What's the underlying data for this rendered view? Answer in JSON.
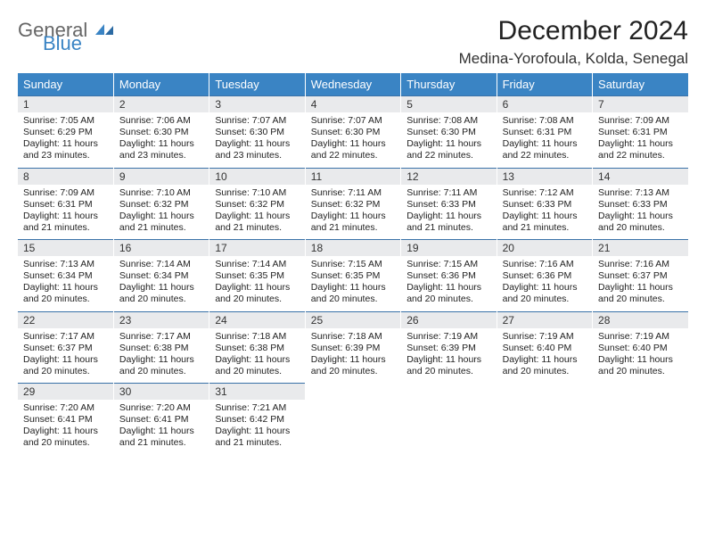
{
  "brand": {
    "part1": "General",
    "part2": "Blue",
    "gray": "#8a8a8a",
    "blue": "#3a84c4"
  },
  "title": "December 2024",
  "location": "Medina-Yorofoula, Kolda, Senegal",
  "header_bg": "#3a84c4",
  "header_fg": "#ffffff",
  "daynum_bg": "#e9eaec",
  "rule_color": "#3a72a8",
  "title_fontsize": 30,
  "location_fontsize": 17,
  "header_fontsize": 13,
  "daynum_fontsize": 12,
  "body_fontsize": 10.5,
  "day_names": [
    "Sunday",
    "Monday",
    "Tuesday",
    "Wednesday",
    "Thursday",
    "Friday",
    "Saturday"
  ],
  "weeks": [
    [
      {
        "n": "1",
        "sr": "7:05 AM",
        "ss": "6:29 PM",
        "dl": "11 hours and 23 minutes."
      },
      {
        "n": "2",
        "sr": "7:06 AM",
        "ss": "6:30 PM",
        "dl": "11 hours and 23 minutes."
      },
      {
        "n": "3",
        "sr": "7:07 AM",
        "ss": "6:30 PM",
        "dl": "11 hours and 23 minutes."
      },
      {
        "n": "4",
        "sr": "7:07 AM",
        "ss": "6:30 PM",
        "dl": "11 hours and 22 minutes."
      },
      {
        "n": "5",
        "sr": "7:08 AM",
        "ss": "6:30 PM",
        "dl": "11 hours and 22 minutes."
      },
      {
        "n": "6",
        "sr": "7:08 AM",
        "ss": "6:31 PM",
        "dl": "11 hours and 22 minutes."
      },
      {
        "n": "7",
        "sr": "7:09 AM",
        "ss": "6:31 PM",
        "dl": "11 hours and 22 minutes."
      }
    ],
    [
      {
        "n": "8",
        "sr": "7:09 AM",
        "ss": "6:31 PM",
        "dl": "11 hours and 21 minutes."
      },
      {
        "n": "9",
        "sr": "7:10 AM",
        "ss": "6:32 PM",
        "dl": "11 hours and 21 minutes."
      },
      {
        "n": "10",
        "sr": "7:10 AM",
        "ss": "6:32 PM",
        "dl": "11 hours and 21 minutes."
      },
      {
        "n": "11",
        "sr": "7:11 AM",
        "ss": "6:32 PM",
        "dl": "11 hours and 21 minutes."
      },
      {
        "n": "12",
        "sr": "7:11 AM",
        "ss": "6:33 PM",
        "dl": "11 hours and 21 minutes."
      },
      {
        "n": "13",
        "sr": "7:12 AM",
        "ss": "6:33 PM",
        "dl": "11 hours and 21 minutes."
      },
      {
        "n": "14",
        "sr": "7:13 AM",
        "ss": "6:33 PM",
        "dl": "11 hours and 20 minutes."
      }
    ],
    [
      {
        "n": "15",
        "sr": "7:13 AM",
        "ss": "6:34 PM",
        "dl": "11 hours and 20 minutes."
      },
      {
        "n": "16",
        "sr": "7:14 AM",
        "ss": "6:34 PM",
        "dl": "11 hours and 20 minutes."
      },
      {
        "n": "17",
        "sr": "7:14 AM",
        "ss": "6:35 PM",
        "dl": "11 hours and 20 minutes."
      },
      {
        "n": "18",
        "sr": "7:15 AM",
        "ss": "6:35 PM",
        "dl": "11 hours and 20 minutes."
      },
      {
        "n": "19",
        "sr": "7:15 AM",
        "ss": "6:36 PM",
        "dl": "11 hours and 20 minutes."
      },
      {
        "n": "20",
        "sr": "7:16 AM",
        "ss": "6:36 PM",
        "dl": "11 hours and 20 minutes."
      },
      {
        "n": "21",
        "sr": "7:16 AM",
        "ss": "6:37 PM",
        "dl": "11 hours and 20 minutes."
      }
    ],
    [
      {
        "n": "22",
        "sr": "7:17 AM",
        "ss": "6:37 PM",
        "dl": "11 hours and 20 minutes."
      },
      {
        "n": "23",
        "sr": "7:17 AM",
        "ss": "6:38 PM",
        "dl": "11 hours and 20 minutes."
      },
      {
        "n": "24",
        "sr": "7:18 AM",
        "ss": "6:38 PM",
        "dl": "11 hours and 20 minutes."
      },
      {
        "n": "25",
        "sr": "7:18 AM",
        "ss": "6:39 PM",
        "dl": "11 hours and 20 minutes."
      },
      {
        "n": "26",
        "sr": "7:19 AM",
        "ss": "6:39 PM",
        "dl": "11 hours and 20 minutes."
      },
      {
        "n": "27",
        "sr": "7:19 AM",
        "ss": "6:40 PM",
        "dl": "11 hours and 20 minutes."
      },
      {
        "n": "28",
        "sr": "7:19 AM",
        "ss": "6:40 PM",
        "dl": "11 hours and 20 minutes."
      }
    ],
    [
      {
        "n": "29",
        "sr": "7:20 AM",
        "ss": "6:41 PM",
        "dl": "11 hours and 20 minutes."
      },
      {
        "n": "30",
        "sr": "7:20 AM",
        "ss": "6:41 PM",
        "dl": "11 hours and 21 minutes."
      },
      {
        "n": "31",
        "sr": "7:21 AM",
        "ss": "6:42 PM",
        "dl": "11 hours and 21 minutes."
      },
      null,
      null,
      null,
      null
    ]
  ],
  "labels": {
    "sunrise": "Sunrise:",
    "sunset": "Sunset:",
    "daylight": "Daylight:"
  }
}
